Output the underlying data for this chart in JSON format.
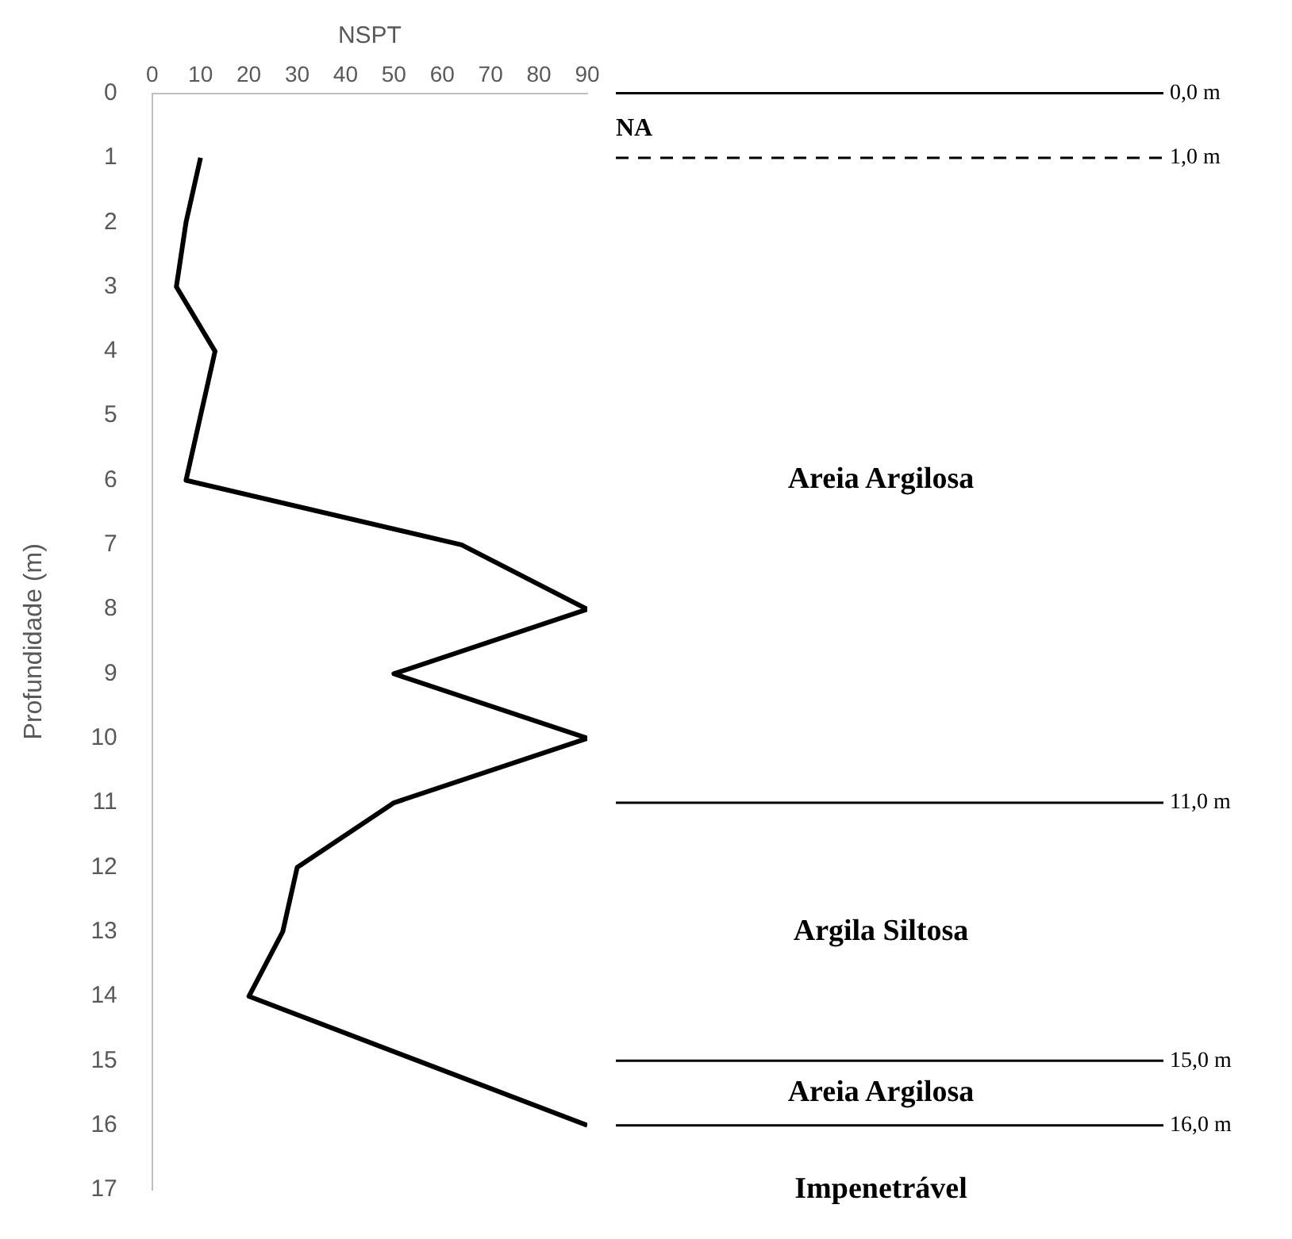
{
  "chart_data": {
    "type": "line",
    "xlabel": "NSPT",
    "ylabel": "Profundidade (m)",
    "series": [
      {
        "color": "#000000",
        "x": [
          10,
          7,
          5,
          13,
          10,
          7,
          64,
          90,
          50,
          90,
          50,
          30,
          27,
          20,
          55,
          90
        ],
        "values": [
          1,
          2,
          3,
          4,
          5,
          6,
          7,
          8,
          9,
          10,
          11,
          12,
          13,
          14,
          15,
          16
        ]
      }
    ],
    "xlim": [
      0,
      90
    ],
    "xticks": [
      0,
      10,
      20,
      30,
      40,
      50,
      60,
      70,
      80,
      90
    ],
    "ylim": [
      17,
      0
    ],
    "yticks": [
      0,
      1,
      2,
      3,
      4,
      5,
      6,
      7,
      8,
      9,
      10,
      11,
      12,
      13,
      14,
      15,
      16,
      17
    ],
    "grid": false,
    "legend": false,
    "marker": "none",
    "line_style": "solid",
    "ref_lines": [
      {
        "axis": "y",
        "value": 0,
        "label": "0,0 m",
        "color": "#000000",
        "line_style": "solid"
      },
      {
        "axis": "y",
        "value": 1,
        "label": "1,0 m",
        "color": "#000000",
        "line_style": "dashed"
      },
      {
        "axis": "y",
        "value": 11,
        "label": "11,0 m",
        "color": "#000000",
        "line_style": "solid"
      },
      {
        "axis": "y",
        "value": 15,
        "label": "15,0 m",
        "color": "#000000",
        "line_style": "solid"
      },
      {
        "axis": "y",
        "value": 16,
        "label": "16,0 m",
        "color": "#000000",
        "line_style": "solid"
      }
    ],
    "annotations": [
      "NA",
      "Areia Argilosa",
      "Argila Siltosa",
      "Areia Argilosa",
      "Impenetrável"
    ]
  }
}
